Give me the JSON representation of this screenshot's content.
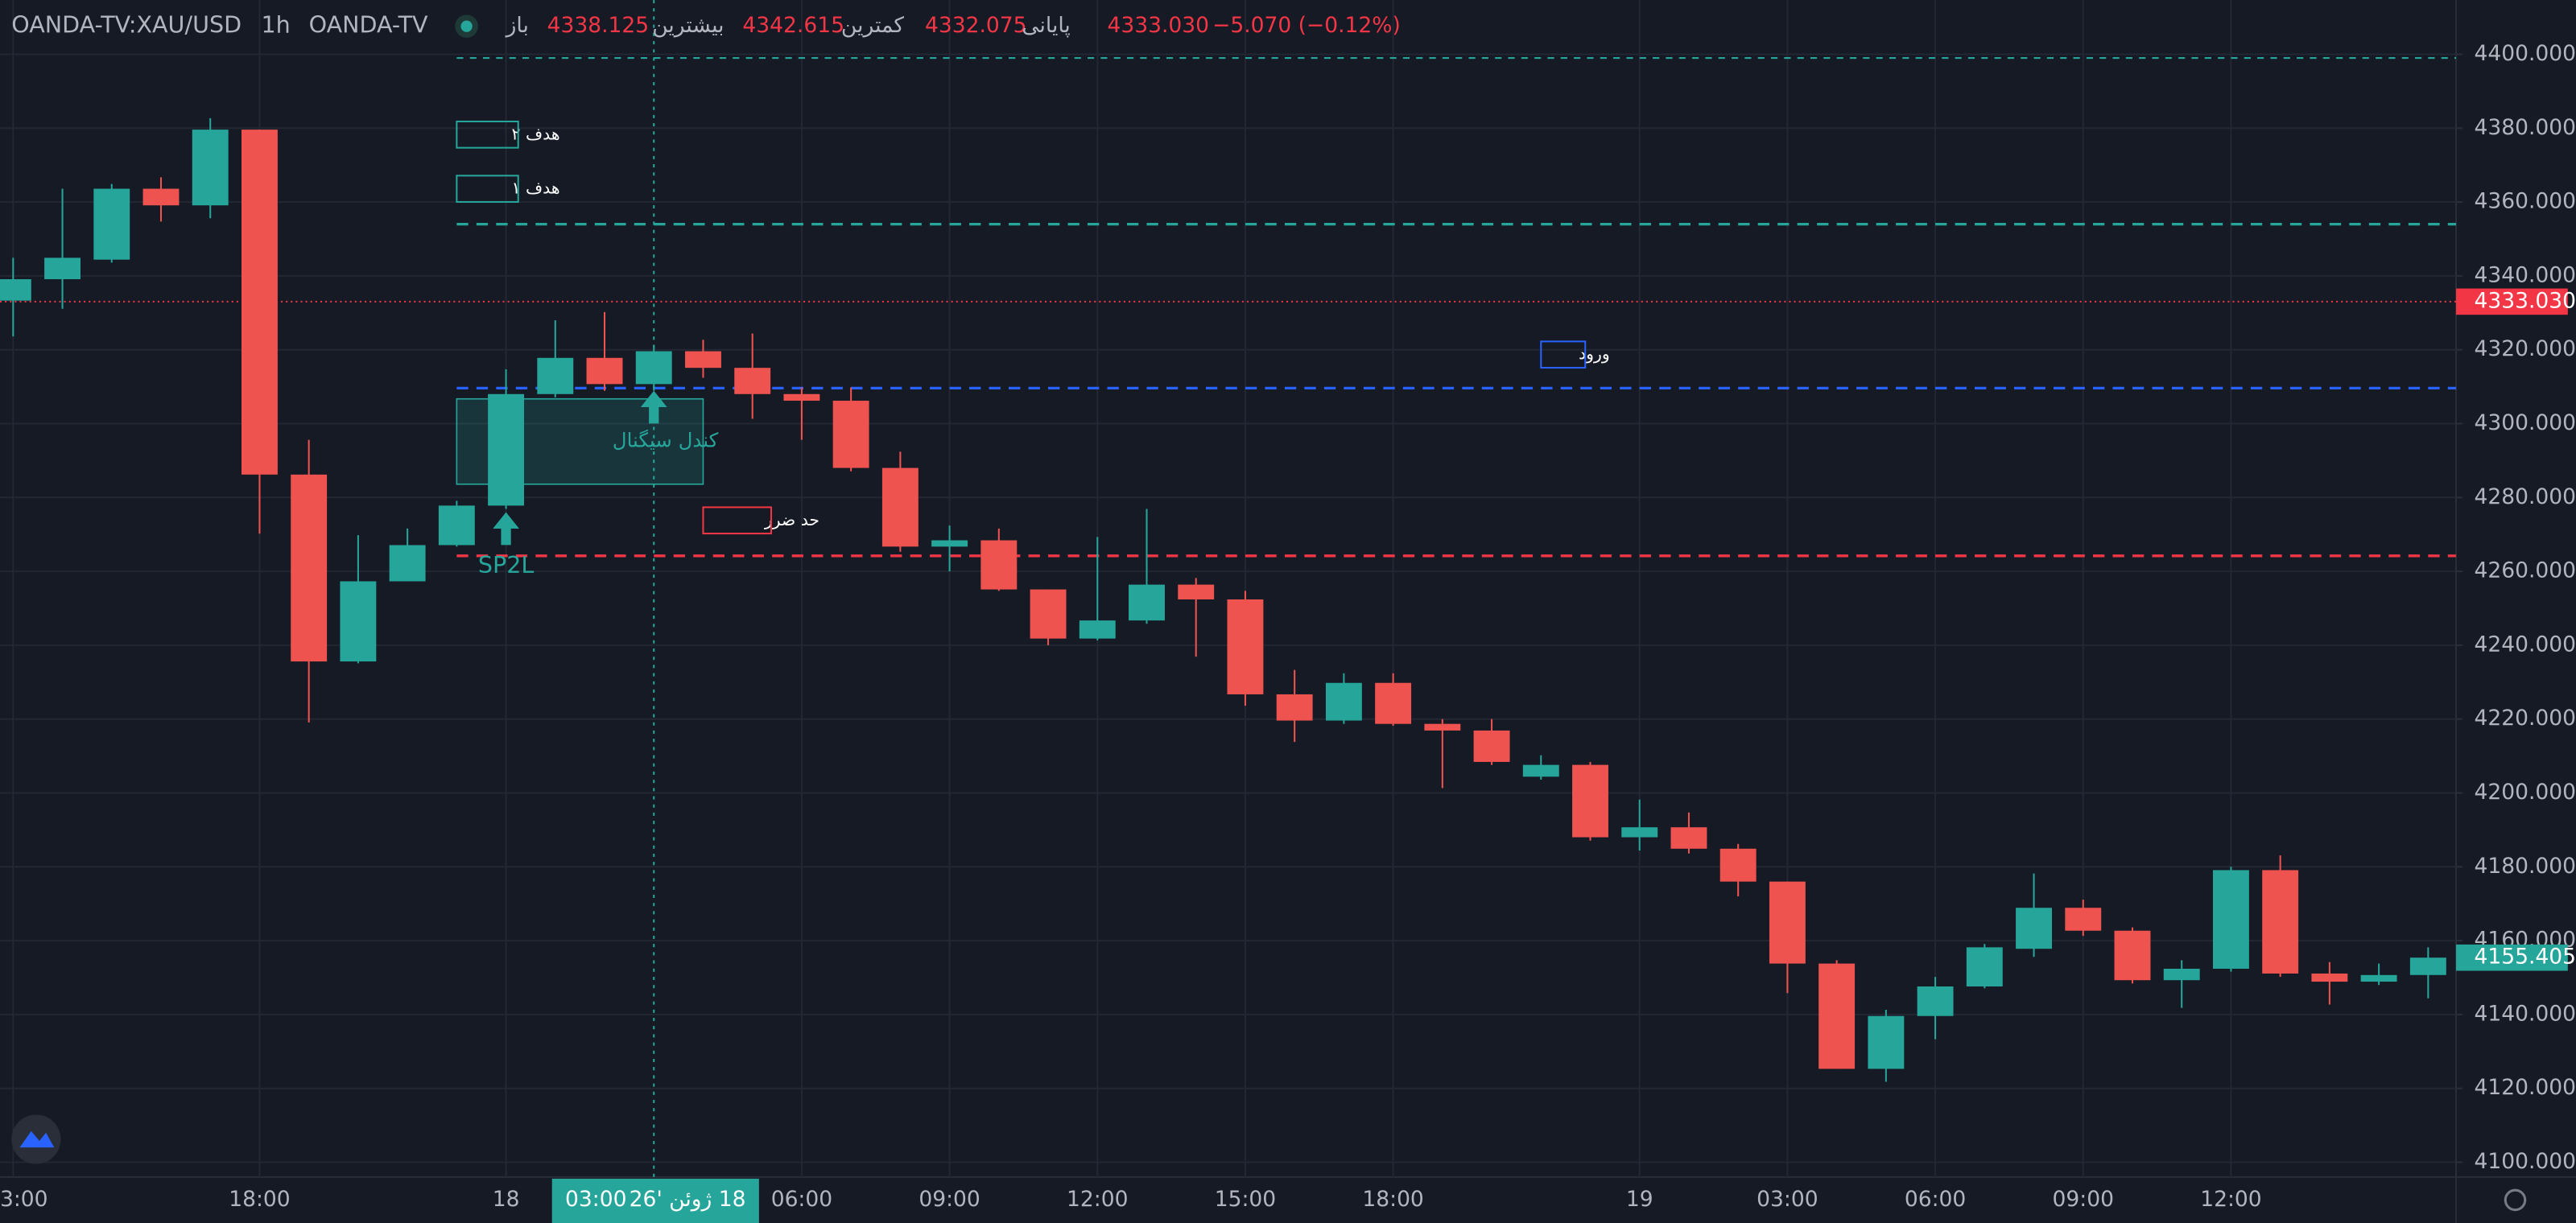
{
  "header": {
    "symbol": "OANDA-TV:XAU/USD",
    "interval": "1h",
    "source": "OANDA-TV",
    "open_label": "باز",
    "open": "4338.125",
    "high_label": "بیشترین",
    "high": "4342.615",
    "low_label": "کمترین",
    "low": "4332.075",
    "close_label": "پایانی",
    "close": "4333.030",
    "change": "−5.070 (−0.12%)"
  },
  "chart_data": {
    "type": "candlestick",
    "categories": [
      "3:00",
      null,
      null,
      null,
      null,
      "18:00",
      null,
      null,
      null,
      null,
      "18",
      null,
      null,
      null,
      null,
      null,
      "06:00",
      null,
      null,
      "09:00",
      null,
      null,
      "12:00",
      null,
      null,
      "15:00",
      null,
      null,
      "18:00",
      null,
      null,
      null,
      null,
      "19",
      null,
      null,
      "03:00",
      null,
      null,
      "06:00",
      null,
      null,
      "09:00",
      null,
      null,
      "12:00",
      null,
      null,
      null,
      null
    ],
    "open": [
      4333.3,
      4339.1,
      4344.4,
      4363.6,
      4359.1,
      4379.6,
      4286.2,
      4235.6,
      4257.3,
      4267.1,
      4277.8,
      4308.0,
      4317.8,
      4310.7,
      4319.6,
      4315.1,
      4308.0,
      4306.2,
      4288.0,
      4266.7,
      4268.4,
      4255.1,
      4241.8,
      4246.7,
      4256.4,
      4252.4,
      4226.7,
      4219.6,
      4229.8,
      4218.7,
      4216.9,
      4204.4,
      4207.6,
      4188.0,
      4190.7,
      4184.9,
      4176.0,
      4153.8,
      4125.3,
      4139.6,
      4147.6,
      4157.8,
      4168.9,
      4162.7,
      4149.3,
      4152.4,
      4179.1,
      4151.1,
      4148.9,
      4150.7
    ],
    "high": [
      4344.9,
      4363.6,
      4364.9,
      4366.7,
      4382.7,
      4379.6,
      4295.6,
      4269.8,
      4271.6,
      4279.1,
      4314.7,
      4328.0,
      4330.2,
      4321.3,
      4322.7,
      4324.4,
      4309.8,
      4309.8,
      4292.4,
      4272.4,
      4271.6,
      4255.1,
      4269.3,
      4276.9,
      4258.2,
      4254.7,
      4233.3,
      4232.4,
      4232.4,
      4220.0,
      4220.0,
      4210.2,
      4208.4,
      4198.2,
      4194.7,
      4186.2,
      4176.0,
      4154.7,
      4141.3,
      4150.2,
      4159.1,
      4178.2,
      4171.1,
      4163.6,
      4154.7,
      4180.0,
      4183.1,
      4154.2,
      4153.8,
      4158.2
    ],
    "low": [
      4323.6,
      4331.1,
      4343.6,
      4354.7,
      4355.6,
      4270.2,
      4219.1,
      4235.1,
      4257.3,
      4266.7,
      4276.9,
      4307.1,
      4308.9,
      4308.9,
      4312.4,
      4301.3,
      4295.6,
      4287.1,
      4265.3,
      4260.0,
      4254.7,
      4240.0,
      4241.3,
      4245.8,
      4236.9,
      4223.6,
      4213.8,
      4218.7,
      4218.2,
      4201.3,
      4207.6,
      4203.6,
      4187.1,
      4184.4,
      4183.6,
      4172.0,
      4145.8,
      4125.3,
      4121.8,
      4133.3,
      4147.1,
      4155.6,
      4161.3,
      4148.4,
      4141.8,
      4151.6,
      4150.2,
      4142.7,
      4148.0,
      4144.4
    ],
    "close": [
      4339.1,
      4344.9,
      4363.6,
      4359.1,
      4379.6,
      4286.2,
      4235.6,
      4257.3,
      4267.1,
      4277.8,
      4308.0,
      4317.8,
      4310.7,
      4319.6,
      4315.1,
      4308.0,
      4306.2,
      4288.0,
      4266.7,
      4268.4,
      4255.1,
      4241.8,
      4246.7,
      4256.4,
      4252.4,
      4226.7,
      4219.6,
      4229.8,
      4218.7,
      4216.9,
      4208.4,
      4207.6,
      4188.0,
      4190.7,
      4184.9,
      4176.0,
      4153.8,
      4125.3,
      4139.6,
      4147.6,
      4158.2,
      4168.9,
      4162.7,
      4149.3,
      4152.4,
      4179.1,
      4151.1,
      4148.9,
      4150.7,
      4155.4
    ],
    "up_color": "#26a69a",
    "down_color": "#ef5350",
    "ylim": [
      4096,
      4414.7
    ],
    "yticks": [
      {
        "value": 4100,
        "label": "4100.000"
      },
      {
        "value": 4120,
        "label": "4120.000"
      },
      {
        "value": 4140,
        "label": "4140.000"
      },
      {
        "value": 4160,
        "label": "4160.000"
      },
      {
        "value": 4180,
        "label": "4180.000"
      },
      {
        "value": 4200,
        "label": "4200.000"
      },
      {
        "value": 4220,
        "label": "4220.000"
      },
      {
        "value": 4240,
        "label": "4240.000"
      },
      {
        "value": 4260,
        "label": "4260.000"
      },
      {
        "value": 4280,
        "label": "4280.000"
      },
      {
        "value": 4300,
        "label": "4300.000"
      },
      {
        "value": 4320,
        "label": "4320.000"
      },
      {
        "value": 4340,
        "label": "4340.000"
      },
      {
        "value": 4360,
        "label": "4360.000"
      },
      {
        "value": 4380,
        "label": "4380.000"
      },
      {
        "value": 4400,
        "label": "4400.000"
      }
    ],
    "grid": true,
    "levels": [
      {
        "name": "هدف ۲",
        "value": 4399,
        "color": "#26a69a"
      },
      {
        "name": "هدف ۱",
        "value": 4354,
        "color": "#26a69a"
      },
      {
        "name": "ورود",
        "value": 4309.6,
        "color": "#2962ff"
      },
      {
        "name": "حد ضرر",
        "value": 4264.2,
        "color": "#f23645"
      }
    ],
    "price_tags": [
      {
        "value": 4333.03,
        "label": "4333.030",
        "color": "#f23645"
      },
      {
        "value": 4155.405,
        "label": "4155.405",
        "color": "#26a69a"
      }
    ],
    "signal_box": {
      "label": "کندل سیگنال",
      "top": 4306.7,
      "bottom": 4283.6
    },
    "signal_name": "SP2L",
    "crosshair": {
      "time": "03:00",
      "date": "18 ژوئن '26"
    }
  }
}
